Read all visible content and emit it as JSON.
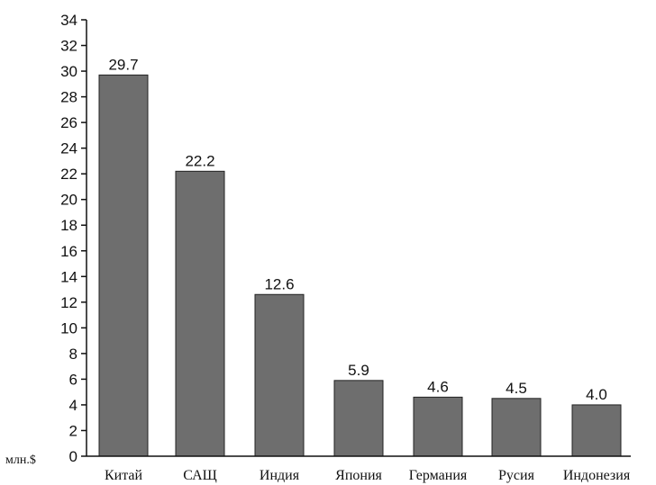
{
  "chart_data": {
    "type": "bar",
    "categories": [
      "Китай",
      "САЩ",
      "Индия",
      "Япония",
      "Германия",
      "Русия",
      "Индонезия"
    ],
    "values": [
      29.7,
      22.2,
      12.6,
      5.9,
      4.6,
      4.5,
      4.0
    ],
    "value_labels": [
      "29.7",
      "22.2",
      "12.6",
      "5.9",
      "4.6",
      "4.5",
      "4.0"
    ],
    "ylim": [
      0,
      34
    ],
    "yticks": [
      0,
      2,
      4,
      6,
      8,
      10,
      12,
      14,
      16,
      18,
      20,
      22,
      24,
      26,
      28,
      30,
      32,
      34
    ],
    "unit_label": "млн.$",
    "grid": false,
    "bar_color": "#6e6e6e"
  }
}
